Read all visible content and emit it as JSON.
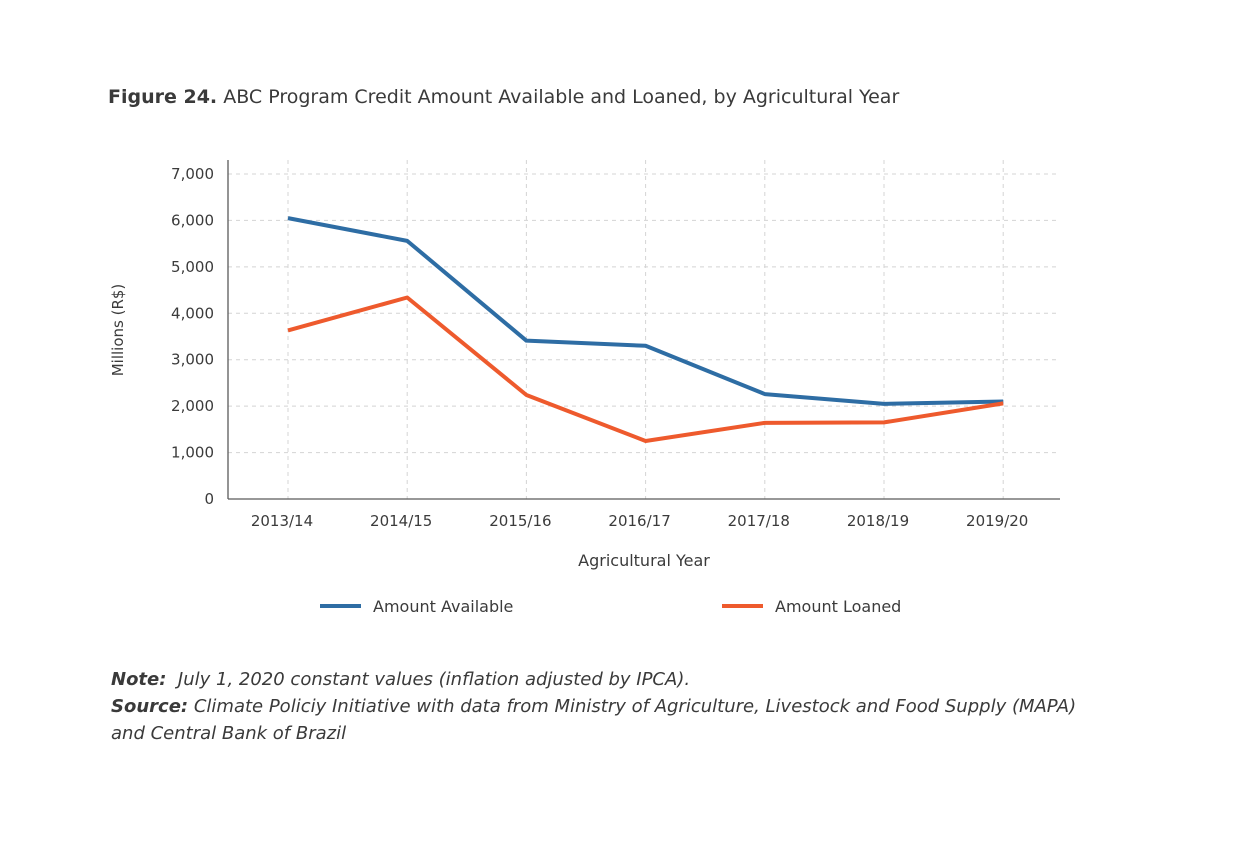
{
  "figure": {
    "number": "Figure 24.",
    "title": "ABC Program Credit Amount Available and Loaned, by Agricultural Year"
  },
  "chart_data": {
    "type": "line",
    "categories": [
      "2013/14",
      "2014/15",
      "2015/16",
      "2016/17",
      "2017/18",
      "2018/19",
      "2019/20"
    ],
    "series": [
      {
        "name": "Amount Available",
        "color": "#2e6da4",
        "values": [
          6050,
          5560,
          3410,
          3300,
          2260,
          2050,
          2100
        ]
      },
      {
        "name": "Amount Loaned",
        "color": "#ee5a2d",
        "values": [
          3630,
          4340,
          2240,
          1250,
          1640,
          1650,
          2060
        ]
      }
    ],
    "xlabel": "Agricultural Year",
    "ylabel": "Millions (R$)",
    "ylim": [
      0,
      7000
    ],
    "yticks": [
      0,
      1000,
      2000,
      3000,
      4000,
      5000,
      6000,
      7000
    ],
    "ytick_labels": [
      "0",
      "1,000",
      "2,000",
      "3,000",
      "4,000",
      "5,000",
      "6,000",
      "7,000"
    ],
    "grid": true,
    "legend_position": "bottom"
  },
  "notes": {
    "note_label": "Note:",
    "note_text": "July 1, 2020 constant values (inflation adjusted by IPCA).",
    "source_label": "Source:",
    "source_text": "Climate Policiy Initiative with data from Ministry of Agriculture, Livestock and Food Supply (MAPA) and Central Bank of Brazil"
  }
}
